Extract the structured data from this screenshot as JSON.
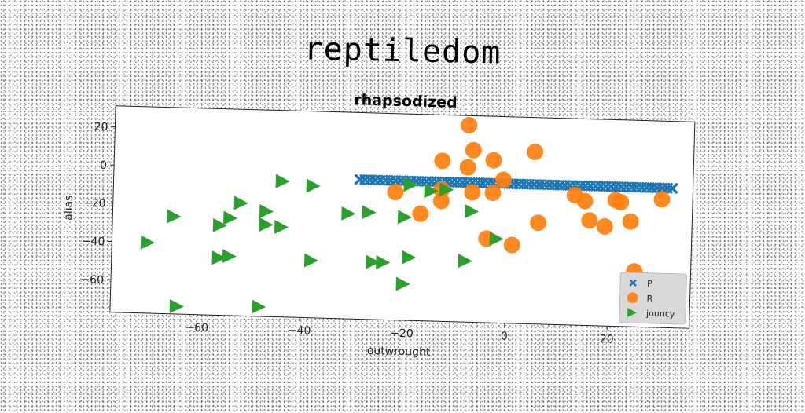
{
  "figure": {
    "super_title": "reptiledom"
  },
  "chart_data": {
    "type": "scatter",
    "title": "rhapsodized",
    "xlabel": "outwrought",
    "ylabel": "alias",
    "xlim": [
      -77,
      36
    ],
    "ylim": [
      -77,
      31
    ],
    "xticks": [
      -60,
      -40,
      -20,
      0,
      20
    ],
    "yticks": [
      20,
      0,
      -20,
      -40,
      -60
    ],
    "legend_position": "lower-right",
    "series": [
      {
        "name": "P",
        "marker": "x",
        "color": "#1f77b4",
        "x": [
          -29,
          -28,
          -27,
          -26,
          -25,
          -24,
          -23,
          -22,
          -21,
          -20,
          -19,
          -18,
          -17,
          -16,
          -15,
          -14,
          -13,
          -12,
          -11,
          -10,
          -9,
          -8,
          -7,
          -6,
          -5,
          -4,
          -3,
          -2,
          -1,
          0,
          1,
          2,
          3,
          4,
          5,
          6,
          7,
          8,
          9,
          10,
          11,
          12,
          13,
          14,
          15,
          16,
          17,
          18,
          19,
          20,
          21,
          22,
          23,
          24,
          25,
          26,
          27,
          28,
          29,
          30,
          31,
          32
        ],
        "y": [
          -4,
          -4,
          -4,
          -4,
          -4,
          -4,
          -4,
          -4,
          -4,
          -4,
          -4,
          -4,
          -4,
          -4,
          -4,
          -4,
          -4,
          -4,
          -4,
          -4,
          -4,
          -4,
          -4,
          -4,
          -4,
          -4,
          -4,
          -4,
          -4,
          -4,
          -4,
          -4,
          -4,
          -4,
          -4,
          -4,
          -4,
          -4,
          -4,
          -4,
          -4,
          -4,
          -4,
          -4,
          -4,
          -4,
          -4,
          -4,
          -4,
          -4,
          -4,
          -4,
          -4,
          -4,
          -4,
          -4,
          -4,
          -4,
          -4,
          -4,
          -4,
          -4
        ]
      },
      {
        "name": "R",
        "marker": "o",
        "color": "#ff7f0e",
        "x": [
          -8,
          -7,
          5,
          -13,
          -3,
          -8,
          -1,
          -7,
          -3,
          -13,
          -22,
          -13,
          -17,
          -4,
          1,
          13,
          15,
          16,
          19,
          21,
          25,
          6,
          22,
          30,
          24
        ],
        "y": [
          26,
          13,
          13,
          7,
          8,
          4,
          -2,
          -9,
          -9,
          -8,
          -10,
          -14,
          -21,
          -33,
          -36,
          -9,
          -12,
          -22,
          -25,
          -11,
          -48,
          -24,
          -12,
          -10,
          -22
        ]
      },
      {
        "name": "jouncy",
        "marker": ">",
        "color": "#2ca02c",
        "x": [
          -70,
          -65,
          -64,
          -56,
          -52,
          -54,
          -56,
          -47,
          -44,
          -38,
          -44,
          -47,
          -47,
          -31,
          -27,
          -20,
          -19,
          -15,
          -12,
          -7,
          -26,
          -24,
          -19,
          -38,
          -20,
          -8,
          -2,
          -54,
          -48
        ],
        "y": [
          -40,
          -26,
          -73,
          -30,
          -18,
          -26,
          -47,
          -22,
          -6,
          -8,
          -30,
          -29,
          -29,
          -22,
          -21,
          -23,
          -6,
          -9,
          -8,
          -19,
          -47,
          -47,
          -44,
          -47,
          -58,
          -45,
          -33,
          -46,
          -72
        ]
      }
    ]
  }
}
